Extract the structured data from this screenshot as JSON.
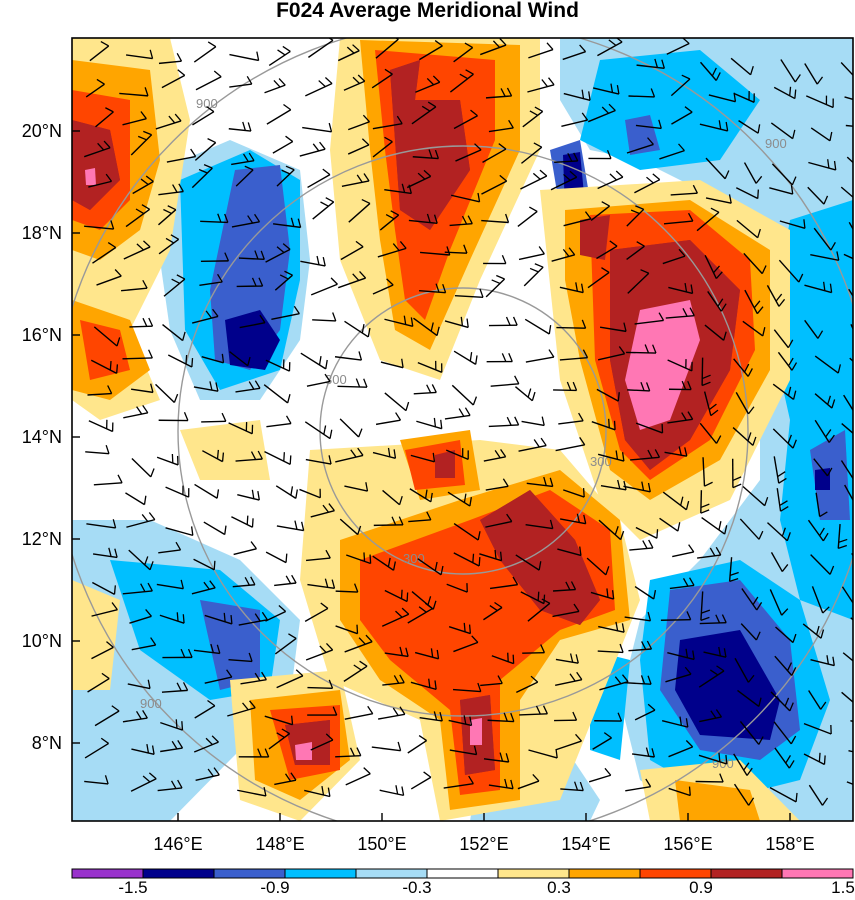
{
  "title": "F024 Average Meridional Wind",
  "x_axis": {
    "ticks": [
      "146°E",
      "148°E",
      "150°E",
      "152°E",
      "154°E",
      "156°E",
      "158°E"
    ]
  },
  "y_axis": {
    "ticks": [
      "20°N",
      "18°N",
      "16°N",
      "14°N",
      "12°N",
      "10°N",
      "8°N"
    ]
  },
  "colorbar": {
    "labels": [
      "-1.5",
      "-0.9",
      "-0.3",
      "0.3",
      "0.9",
      "1.5"
    ],
    "colors": [
      "#9932cc",
      "#00008b",
      "#3a5fcd",
      "#00bfff",
      "#a6dcf5",
      "#ffffff",
      "#ffe68c",
      "#ffa500",
      "#ff4500",
      "#b22222",
      "#ff77b4"
    ]
  },
  "range_rings": {
    "labels": [
      "300",
      "300",
      "300",
      "900",
      "900",
      "900",
      "900"
    ]
  },
  "fill_colors": {
    "strong_neg": "#00008b",
    "mod_neg": "#3a5fcd",
    "neg": "#00bfff",
    "weak_neg": "#a6dcf5",
    "weak_pos": "#ffe68c",
    "pos": "#ffa500",
    "mod_pos": "#ff4500",
    "strong_pos": "#b22222",
    "max_pos": "#ff77b4"
  }
}
